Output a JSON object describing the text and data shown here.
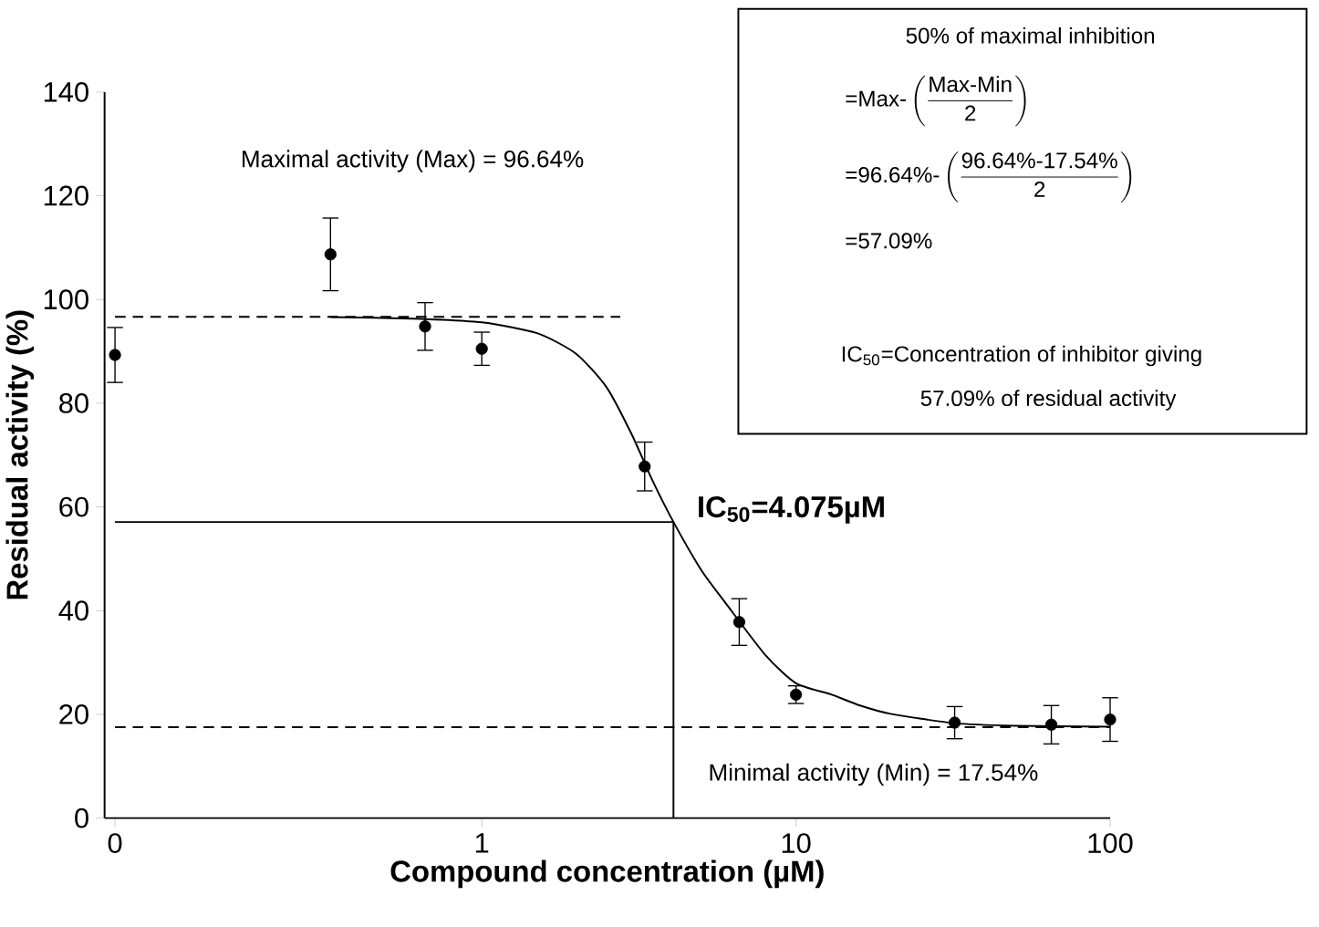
{
  "chart_data": {
    "type": "scatter",
    "xlabel": "Compound concentration (µM)",
    "ylabel": "Residual activity (%)",
    "log": "x",
    "xlim": [
      0.063,
      100
    ],
    "ylim": [
      0,
      140
    ],
    "xticks": [
      {
        "value": 0.068,
        "label": "0"
      },
      1,
      10,
      100
    ],
    "yticks": [
      0,
      20,
      40,
      60,
      80,
      100,
      120,
      140
    ],
    "grid": false,
    "series": [
      {
        "color": "#000000",
        "marker": "circle",
        "x": [
          0.068,
          0.33,
          0.66,
          1,
          3.3,
          6.6,
          10,
          32,
          65,
          100
        ],
        "values": [
          89.3,
          108.7,
          94.8,
          90.5,
          67.8,
          37.8,
          23.8,
          18.4,
          18.0,
          19.0
        ],
        "errors": [
          5.3,
          7,
          4.6,
          3.2,
          4.7,
          4.5,
          1.7,
          3.1,
          3.7,
          4.2
        ]
      },
      {
        "type": "line",
        "color": "#000000",
        "line_style": "solid",
        "x": [
          0.33,
          0.6,
          1,
          1.5,
          2,
          2.5,
          3,
          3.5,
          4.075,
          5,
          6,
          8,
          10,
          13,
          16,
          20,
          32,
          50,
          100
        ],
        "values": [
          96.6,
          96.3,
          95.6,
          93.5,
          89.5,
          83,
          74,
          65,
          57.09,
          47.8,
          41.3,
          31.4,
          26,
          23.8,
          21.7,
          20.1,
          18.3,
          17.8,
          17.6
        ]
      },
      {
        "type": "line",
        "color": "#000000",
        "line_style": "dashed",
        "x": [
          0.068,
          2.76
        ],
        "values": [
          96.64,
          96.64
        ]
      },
      {
        "type": "line",
        "color": "#000000",
        "line_style": "dashed",
        "x": [
          0.068,
          100
        ],
        "values": [
          17.54,
          17.54
        ]
      },
      {
        "type": "line",
        "color": "#000000",
        "line_style": "solid",
        "x": [
          0.068,
          4.075,
          4.075
        ],
        "values": [
          57.09,
          57.09,
          0
        ]
      }
    ],
    "annotations": [
      "Maximal activity (Max) = 96.64%",
      "Minimal activity (Min) = 17.54%",
      {
        "text": "IC$_{50}$=4.075µM",
        "x": 4.075,
        "y": 57.09
      },
      "50% of maximal inhibition",
      "\\text{=Max-}\\left(\\dfrac{\\text{Max-Min}}{\\text{2}}\\right)",
      "\\text{=96.64\\%-}\\left(\\dfrac{\\text{96.64\\%-17.54\\%}}{\\text{2}}\\right)",
      "=57.09%",
      "IC$_{50}$=Concentration of inhibitor giving",
      "57.09% of residual activity"
    ]
  }
}
